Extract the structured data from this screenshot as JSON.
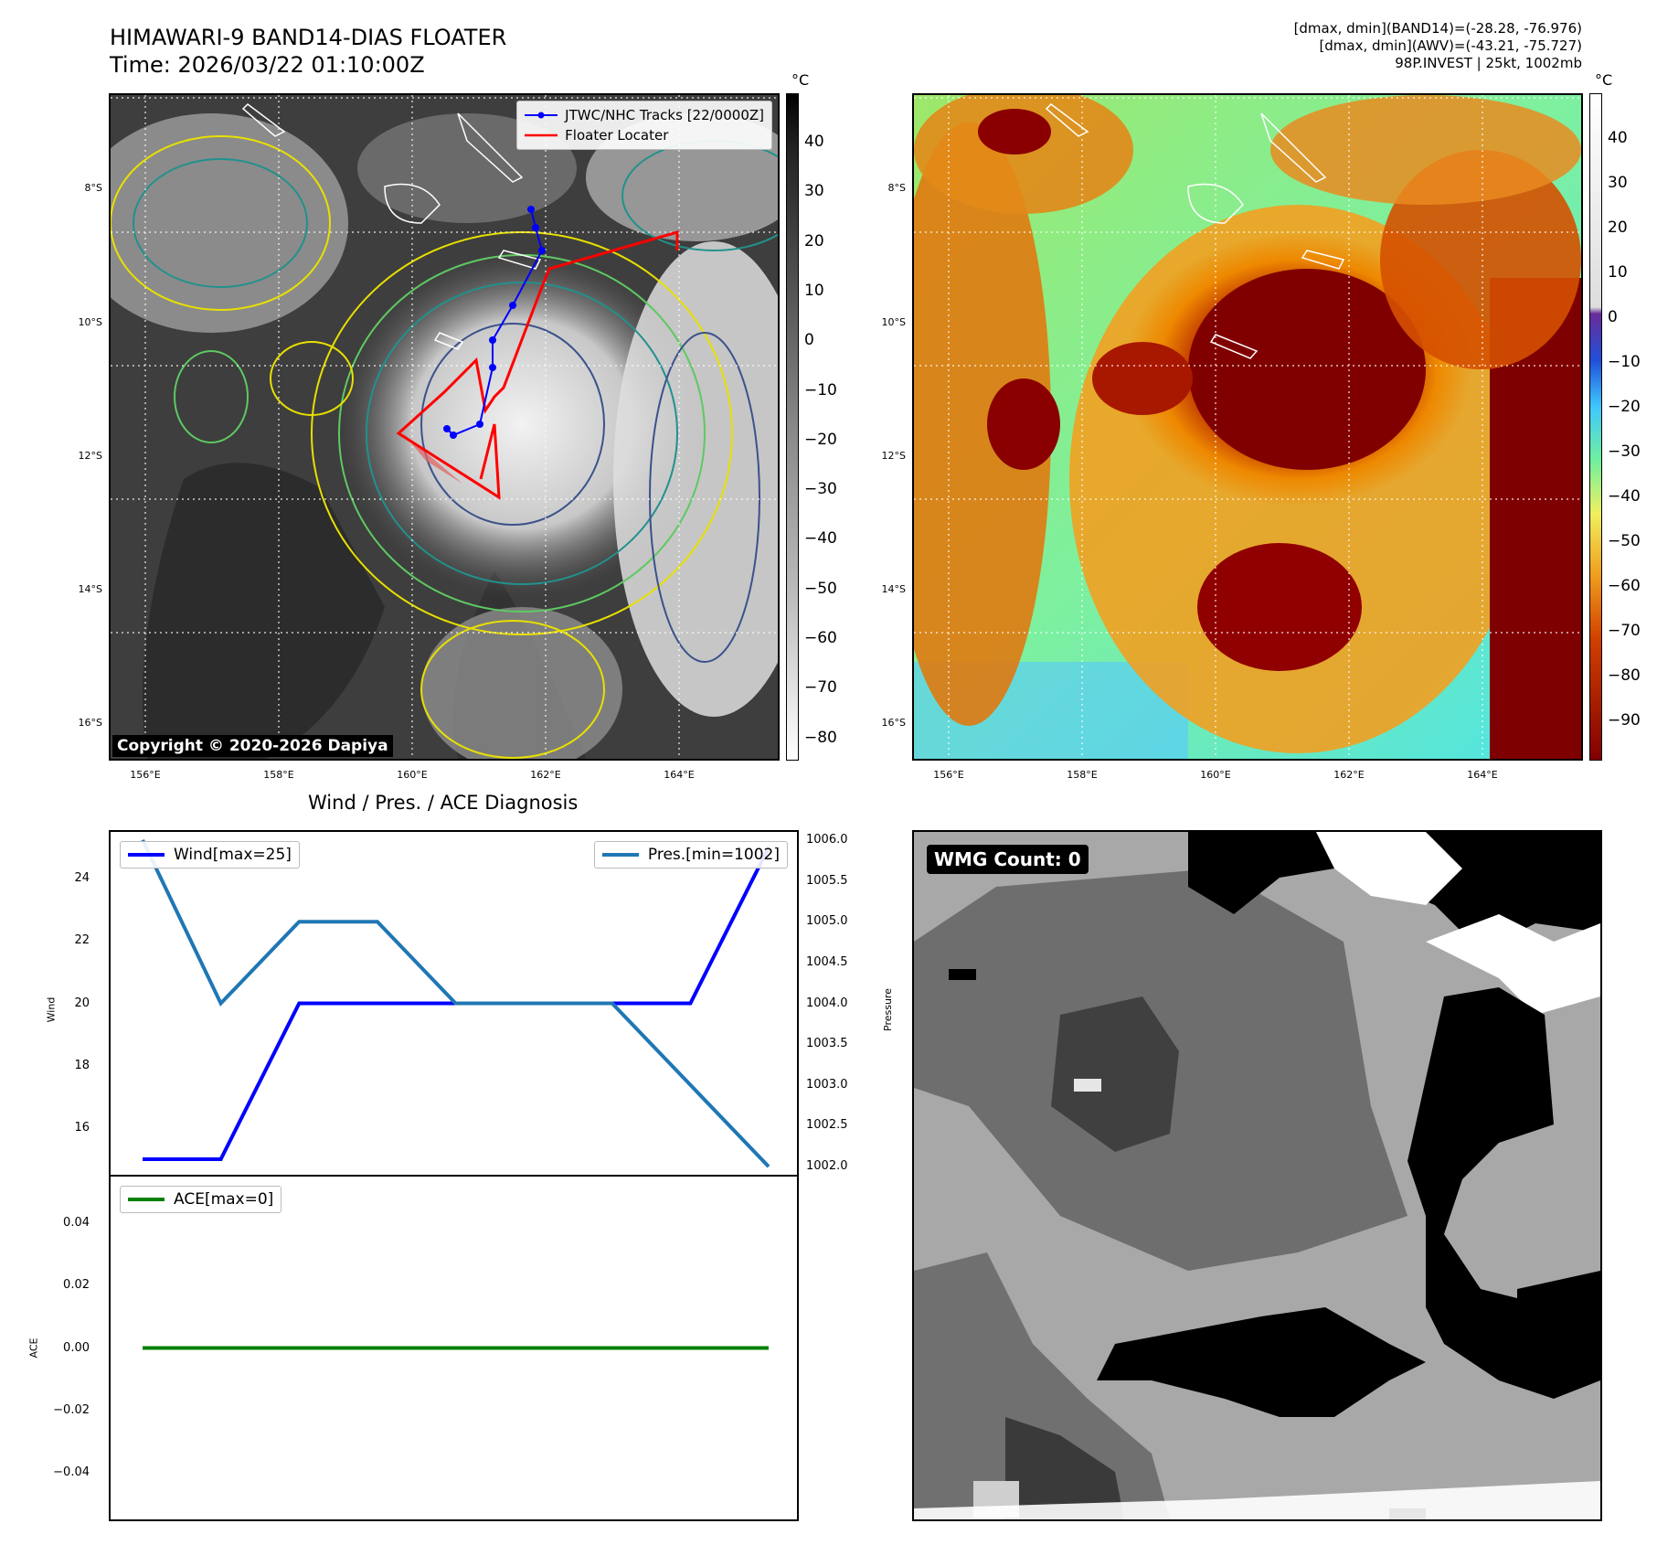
{
  "header": {
    "title_line1": "HIMAWARI-9 BAND14-DIAS FLOATER",
    "title_line2": "Time: 2026/03/22 01:10:00Z",
    "info_line1": "[dmax, dmin](BAND14)=(-28.28, -76.976)",
    "info_line2": "[dmax, dmin](AWV)=(-43.21, -75.727)",
    "info_line3": "98P.INVEST | 25kt, 1002mb"
  },
  "map_axes": {
    "lat_labels": [
      "8°S",
      "10°S",
      "12°S",
      "14°S",
      "16°S"
    ],
    "lon_labels": [
      "156°E",
      "158°E",
      "160°E",
      "162°E",
      "164°E"
    ]
  },
  "ir_panel": {
    "legend": [
      {
        "label": "JTWC/NHC Tracks [22/0000Z]",
        "color": "#0000ff"
      },
      {
        "label": "Floater Locater",
        "color": "#ff0000"
      }
    ],
    "copyright": "Copyright © 2020-2026 Dapiya",
    "colorbar_unit": "°C",
    "colorbar_ticks": [
      "40",
      "30",
      "20",
      "10",
      "0",
      "−10",
      "−20",
      "−30",
      "−40",
      "−50",
      "−60",
      "−70",
      "−80"
    ]
  },
  "awv_panel": {
    "colorbar_unit": "°C",
    "colorbar_ticks": [
      "40",
      "30",
      "20",
      "10",
      "0",
      "−10",
      "−20",
      "−30",
      "−40",
      "−50",
      "−60",
      "−70",
      "−80",
      "−90"
    ]
  },
  "diagnosis": {
    "title": "Wind / Pres. / ACE Diagnosis",
    "wind_axis_label": "Wind",
    "pressure_axis_label": "Pressure",
    "ace_axis_label": "ACE",
    "wind_legend": "Wind[max=25]",
    "pressure_legend": "Pres.[min=1002]",
    "ace_legend": "ACE[max=0]",
    "wind_ticks": [
      "24",
      "22",
      "20",
      "18",
      "16"
    ],
    "pressure_ticks": [
      "1006.0",
      "1005.5",
      "1005.0",
      "1004.5",
      "1004.0",
      "1003.5",
      "1003.0",
      "1002.5",
      "1002.0"
    ],
    "ace_ticks": [
      "0.04",
      "0.02",
      "0.00",
      "−0.02",
      "−0.04"
    ]
  },
  "wmg_panel": {
    "label": "WMG Count: 0"
  },
  "chart_data": [
    {
      "type": "line",
      "title": "Wind / Pres. / ACE Diagnosis",
      "ylabel": "Wind",
      "ylim": [
        14.5,
        25.5
      ],
      "series": [
        {
          "name": "Wind[max=25]",
          "color": "#0000ff",
          "values": [
            15,
            15,
            20,
            20,
            20,
            20,
            20,
            20,
            25
          ]
        }
      ]
    },
    {
      "type": "line",
      "ylabel": "Pressure",
      "ylim": [
        1001.9,
        1006.1
      ],
      "series": [
        {
          "name": "Pres.[min=1002]",
          "color": "#1f77b4",
          "values": [
            1006,
            1004,
            1005,
            1005,
            1004,
            1004,
            1004,
            1003,
            1002
          ]
        }
      ]
    },
    {
      "type": "line",
      "ylabel": "ACE",
      "ylim": [
        -0.055,
        0.055
      ],
      "series": [
        {
          "name": "ACE[max=0]",
          "color": "#008000",
          "values": [
            0,
            0,
            0,
            0,
            0,
            0,
            0,
            0,
            0
          ]
        }
      ]
    }
  ]
}
